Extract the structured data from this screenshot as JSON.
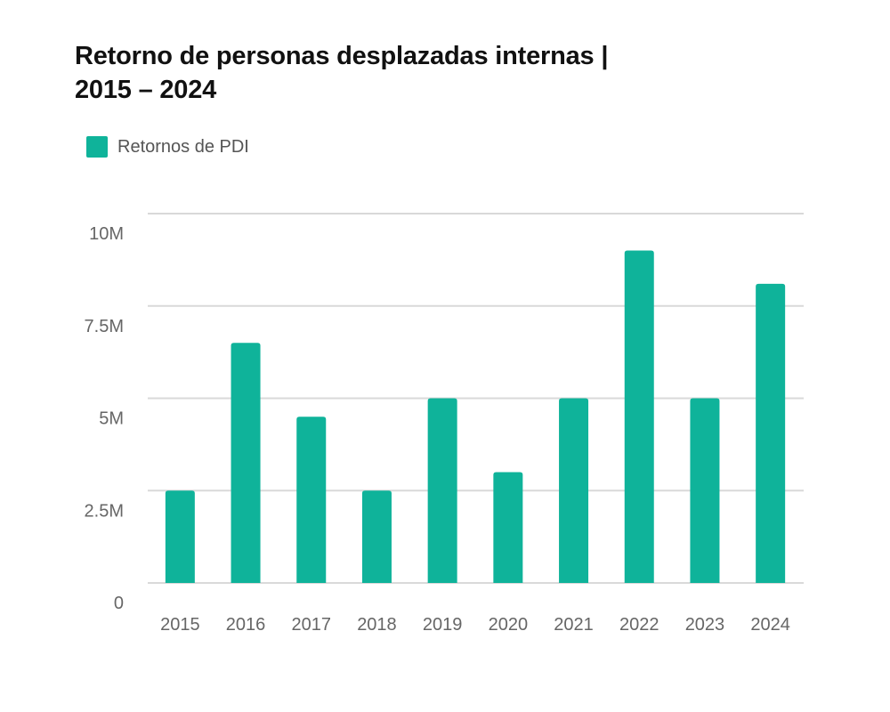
{
  "title_line1": "Retorno de personas desplazadas internas |",
  "title_line2": "2015 – 2024",
  "colors": {
    "bar": "#0fb39a",
    "grid": "#d9d9d9",
    "text": "#666666"
  },
  "chart_data": {
    "type": "bar",
    "title": "Retorno de personas desplazadas internas | 2015 – 2024",
    "xlabel": "",
    "ylabel": "",
    "categories": [
      "2015",
      "2016",
      "2017",
      "2018",
      "2019",
      "2020",
      "2021",
      "2022",
      "2023",
      "2024"
    ],
    "series": [
      {
        "name": "Retornos de PDI",
        "values": [
          2500000,
          6500000,
          4500000,
          2500000,
          5000000,
          3000000,
          5000000,
          9000000,
          5000000,
          8100000
        ]
      }
    ],
    "ylim": [
      0,
      10000000
    ],
    "yticks": [
      0,
      2500000,
      5000000,
      7500000,
      10000000
    ],
    "ytick_labels": [
      "0",
      "2.5M",
      "5M",
      "7.5M",
      "10M"
    ],
    "grid": true,
    "legend": {
      "position": "top-left",
      "entries": [
        "Retornos de PDI"
      ]
    }
  }
}
